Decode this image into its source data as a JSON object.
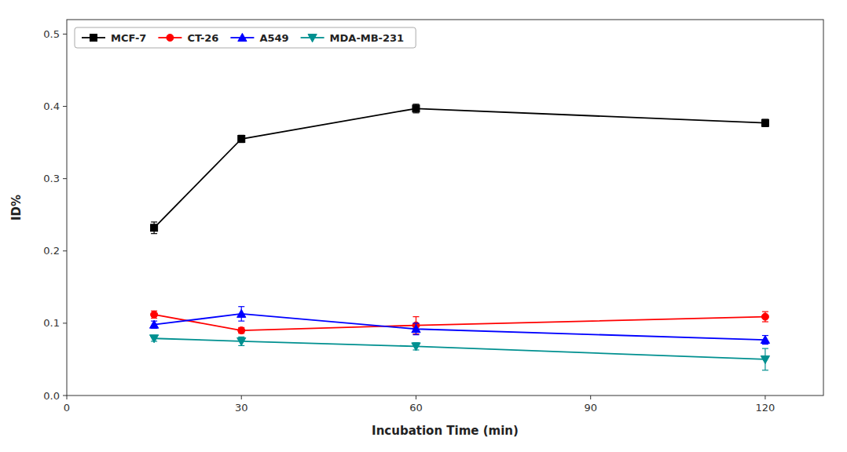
{
  "chart_data": {
    "type": "line",
    "x": [
      15,
      30,
      60,
      120
    ],
    "series": [
      {
        "name": "MCF-7",
        "color": "#000000",
        "marker": "square",
        "values": [
          0.232,
          0.355,
          0.397,
          0.377
        ],
        "errors": [
          0.008,
          0.005,
          0.006,
          0.005
        ]
      },
      {
        "name": "CT-26",
        "color": "#ff0000",
        "marker": "circle",
        "values": [
          0.112,
          0.09,
          0.097,
          0.109
        ],
        "errors": [
          0.005,
          0.004,
          0.012,
          0.007
        ]
      },
      {
        "name": "A549",
        "color": "#0000ff",
        "marker": "triangle-up",
        "values": [
          0.098,
          0.113,
          0.092,
          0.077
        ],
        "errors": [
          0.005,
          0.01,
          0.008,
          0.006
        ]
      },
      {
        "name": "MDA-MB-231",
        "color": "#009090",
        "marker": "triangle-down",
        "values": [
          0.079,
          0.075,
          0.068,
          0.05
        ],
        "errors": [
          0.004,
          0.006,
          0.005,
          0.015
        ]
      }
    ],
    "xlabel": "Incubation Time (min)",
    "ylabel": "ID%",
    "xlim": [
      0,
      130
    ],
    "ylim": [
      0.0,
      0.52
    ],
    "xticks": [
      0,
      30,
      60,
      90,
      120
    ],
    "yticks": [
      {
        "value": 0,
        "label": "0.0"
      },
      0.1,
      0.2,
      0.3,
      0.4,
      0.5
    ],
    "grid": false,
    "legend": "upper-left"
  }
}
